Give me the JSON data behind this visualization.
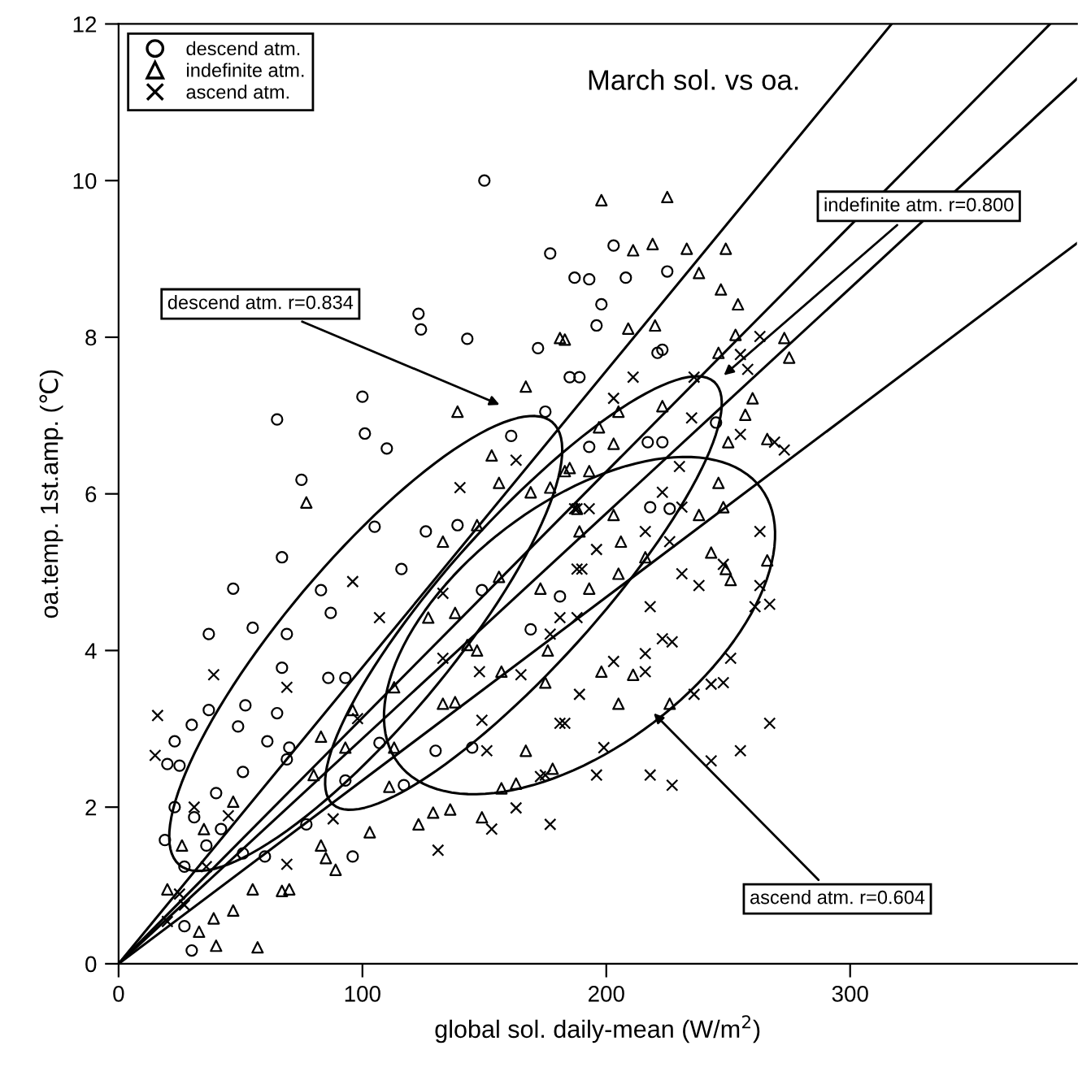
{
  "chart_data": {
    "type": "scatter",
    "title": "March sol. vs oa.",
    "xlabel": "global sol. daily-mean (W/m$^{2}$)",
    "ylabel": "oa.temp. 1st.amp. (℃)",
    "xlim": [
      0,
      393
    ],
    "ylim": [
      0,
      12
    ],
    "xticks": [
      0,
      100,
      200,
      300
    ],
    "yticks": [
      0,
      2,
      4,
      6,
      8,
      10,
      12
    ],
    "legend": "top left",
    "series": [
      {
        "name": "descend atm.",
        "type": "scatter",
        "marker": "circle",
        "color": "#000000",
        "x": [
          150,
          177,
          187,
          123,
          124,
          143,
          172,
          100,
          65,
          101,
          110,
          75,
          161,
          105,
          126,
          67,
          116,
          47,
          83,
          37,
          55,
          69,
          87,
          67,
          86,
          93,
          37,
          52,
          30,
          23,
          49,
          61,
          70,
          20,
          25,
          51,
          40,
          23,
          31,
          42,
          19,
          36,
          51,
          60,
          77,
          93,
          96,
          27,
          30,
          27,
          107,
          117,
          130,
          145,
          169,
          149,
          139,
          69,
          65,
          203,
          193,
          208,
          198,
          196,
          225,
          223,
          221,
          185,
          189,
          175,
          193,
          217,
          223,
          218,
          181,
          245,
          226
        ],
        "values": [
          10.0,
          9.07,
          8.76,
          8.3,
          8.1,
          7.98,
          7.86,
          7.24,
          6.95,
          6.77,
          6.58,
          6.18,
          6.74,
          5.58,
          5.52,
          5.19,
          5.04,
          4.79,
          4.77,
          4.21,
          4.29,
          4.21,
          4.48,
          3.78,
          3.65,
          3.65,
          3.24,
          3.3,
          3.05,
          2.84,
          3.03,
          2.84,
          2.76,
          2.55,
          2.53,
          2.45,
          2.18,
          2.0,
          1.87,
          1.72,
          1.58,
          1.51,
          1.41,
          1.37,
          1.78,
          2.34,
          1.37,
          1.24,
          0.17,
          0.48,
          2.82,
          2.28,
          2.72,
          2.76,
          4.27,
          4.77,
          5.6,
          2.61,
          3.2,
          9.17,
          8.74,
          8.76,
          8.42,
          8.15,
          8.84,
          7.84,
          7.8,
          7.49,
          7.49,
          7.05,
          6.6,
          6.66,
          6.66,
          5.83,
          4.69,
          6.91,
          5.81
        ]
      },
      {
        "name": "indefinite atm.",
        "type": "scatter",
        "marker": "triangle",
        "color": "#000000",
        "x": [
          198,
          225,
          211,
          219,
          233,
          249,
          238,
          247,
          254,
          220,
          209,
          181,
          253,
          273,
          275,
          246,
          260,
          257,
          250,
          266,
          223,
          205,
          197,
          203,
          185,
          193,
          188,
          189,
          203,
          206,
          216,
          238,
          243,
          246,
          248,
          249,
          266,
          251,
          193,
          205,
          176,
          198,
          211,
          226,
          205,
          175,
          183,
          167,
          139,
          153,
          183,
          77,
          127,
          113,
          93,
          111,
          123,
          129,
          136,
          149,
          157,
          163,
          178,
          103,
          83,
          85,
          89,
          67,
          70,
          55,
          47,
          39,
          33,
          40,
          57,
          26,
          20,
          80,
          83,
          96,
          113,
          133,
          138,
          143,
          147,
          157,
          167,
          173,
          156,
          138,
          147,
          133,
          177,
          169,
          156,
          47,
          35
        ],
        "values": [
          9.75,
          9.79,
          9.11,
          9.19,
          9.13,
          9.13,
          8.82,
          8.61,
          8.42,
          8.15,
          8.11,
          7.99,
          8.03,
          7.99,
          7.74,
          7.8,
          7.22,
          7.01,
          6.66,
          6.7,
          7.12,
          7.05,
          6.85,
          6.64,
          6.33,
          6.29,
          5.81,
          5.52,
          5.73,
          5.39,
          5.19,
          5.73,
          5.25,
          6.14,
          5.83,
          5.04,
          5.15,
          4.9,
          4.79,
          4.98,
          4.0,
          3.73,
          3.69,
          3.32,
          3.32,
          3.59,
          7.97,
          7.37,
          7.05,
          6.49,
          6.29,
          5.89,
          4.42,
          3.53,
          2.76,
          2.26,
          1.78,
          1.93,
          1.97,
          1.87,
          2.24,
          2.3,
          2.49,
          1.68,
          1.51,
          1.35,
          1.2,
          0.93,
          0.95,
          0.95,
          0.68,
          0.58,
          0.41,
          0.23,
          0.21,
          1.51,
          0.95,
          2.41,
          2.9,
          3.24,
          2.76,
          3.32,
          3.34,
          4.07,
          4.0,
          3.73,
          2.72,
          4.79,
          4.94,
          4.48,
          5.6,
          5.39,
          6.08,
          6.02,
          6.14,
          2.07,
          1.72
        ]
      },
      {
        "name": "ascend atm.",
        "type": "scatter",
        "marker": "cross",
        "color": "#000000",
        "x": [
          263,
          255,
          258,
          269,
          273,
          236,
          211,
          203,
          235,
          255,
          230,
          223,
          231,
          188,
          193,
          196,
          216,
          226,
          263,
          248,
          263,
          261,
          267,
          231,
          238,
          190,
          181,
          218,
          223,
          227,
          216,
          203,
          216,
          251,
          243,
          248,
          236,
          189,
          181,
          267,
          199,
          255,
          243,
          175,
          196,
          218,
          227,
          177,
          163,
          96,
          107,
          133,
          39,
          16,
          15,
          98,
          133,
          148,
          149,
          151,
          165,
          183,
          173,
          163,
          177,
          153,
          131,
          88,
          69,
          69,
          45,
          31,
          36,
          25,
          20,
          27,
          187,
          188,
          188,
          140
        ],
        "values": [
          8.01,
          7.78,
          7.59,
          6.66,
          6.56,
          7.49,
          7.49,
          7.22,
          6.97,
          6.76,
          6.35,
          6.02,
          5.83,
          5.81,
          5.81,
          5.29,
          5.52,
          5.39,
          5.52,
          5.1,
          4.83,
          4.56,
          4.59,
          4.98,
          4.83,
          5.04,
          4.42,
          4.56,
          4.15,
          4.11,
          3.96,
          3.86,
          3.73,
          3.9,
          3.57,
          3.59,
          3.44,
          3.44,
          3.07,
          3.07,
          2.76,
          2.72,
          2.59,
          2.41,
          2.41,
          2.41,
          2.28,
          4.21,
          6.43,
          4.88,
          4.42,
          4.73,
          3.69,
          3.17,
          2.66,
          3.13,
          3.9,
          3.73,
          3.11,
          2.72,
          3.69,
          3.07,
          2.39,
          1.99,
          1.78,
          1.72,
          1.45,
          1.85,
          1.27,
          3.53,
          1.89,
          2.0,
          1.24,
          0.89,
          0.54,
          0.75,
          5.81,
          4.42,
          5.04,
          6.08
        ]
      },
      {
        "type": "line",
        "color": "#000000",
        "x": [
          0,
          317
        ],
        "values": [
          0,
          12
        ]
      },
      {
        "type": "line",
        "color": "#000000",
        "x": [
          0,
          382
        ],
        "values": [
          0,
          12
        ]
      },
      {
        "type": "line",
        "color": "#000000",
        "x": [
          0,
          393
        ],
        "values": [
          0,
          11.3
        ]
      },
      {
        "type": "line",
        "color": "#000000",
        "x": [
          0,
          393
        ],
        "values": [
          0,
          9.2
        ]
      }
    ],
    "annotations": [
      "descend atm. r=0.834",
      "indefinite atm. r=0.800",
      "ascend atm. r=0.604"
    ]
  }
}
